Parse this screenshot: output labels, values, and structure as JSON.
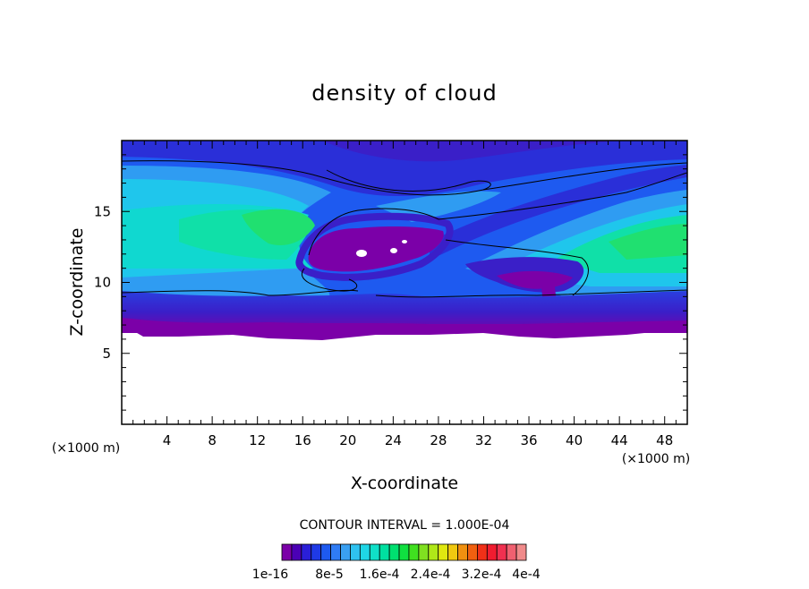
{
  "chart_data": {
    "type": "heatmap",
    "title": "density of cloud",
    "xlabel": "X-coordinate",
    "ylabel": "Z-coordinate",
    "x_unit": "(×1000 m)",
    "y_unit": "(×1000 m)",
    "xlim": [
      0,
      50
    ],
    "ylim": [
      0,
      20
    ],
    "x_ticks": [
      4,
      8,
      12,
      16,
      20,
      24,
      28,
      32,
      36,
      40,
      44,
      48
    ],
    "y_ticks": [
      5,
      10,
      15
    ],
    "contour_interval_text": "CONTOUR INTERVAL = 1.000E-04",
    "colorbar_labels": [
      "1e-16",
      "8e-5",
      "1.6e-4",
      "2.4e-4",
      "3.2e-4",
      "4e-4"
    ],
    "colorbar_colors": [
      "#7b00a8",
      "#4b00b5",
      "#2a1fd8",
      "#1f3ae6",
      "#1e5af0",
      "#2f7cf5",
      "#3aa0f2",
      "#2fc2f0",
      "#1fd6e6",
      "#10e0c8",
      "#00e0a0",
      "#00e070",
      "#10e040",
      "#40e020",
      "#80e020",
      "#b0e818",
      "#e0e810",
      "#f0c810",
      "#f09010",
      "#f06010",
      "#f03018",
      "#f01c30",
      "#f03050",
      "#f06070",
      "#f08a8a"
    ]
  }
}
